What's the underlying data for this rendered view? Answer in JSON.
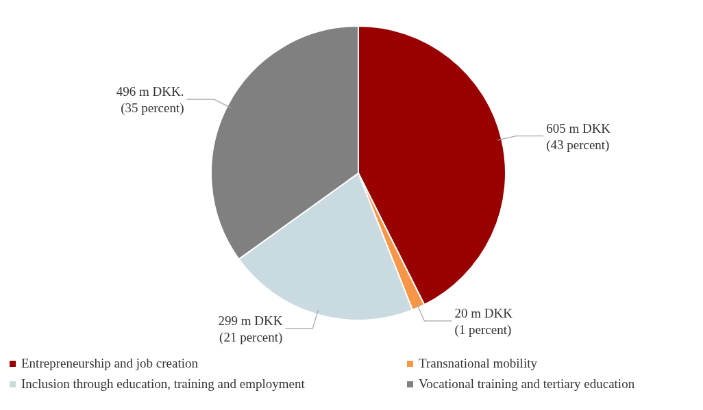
{
  "chart_data": {
    "type": "pie",
    "categories": [
      "Entrepreneurship and job creation",
      "Transnational mobility",
      "Inclusion through education, training and employment",
      "Vocational training and tertiary education"
    ],
    "values": [
      605,
      20,
      299,
      496
    ],
    "colors": [
      "#990000",
      "#f79646",
      "#c9dbe0",
      "#808080"
    ],
    "value_labels": [
      "605 m DKK\n(43 percent)",
      "20 m DKK\n(1 percent)",
      "299 m DKK\n(21 percent)",
      "496 m DKK.\n(35 percent)"
    ],
    "legend": "bottom"
  }
}
